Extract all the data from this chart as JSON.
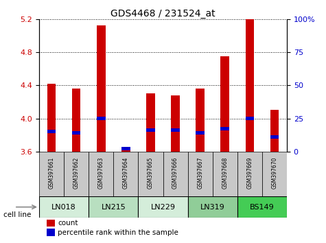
{
  "title": "GDS4468 / 231524_at",
  "samples": [
    "GSM397661",
    "GSM397662",
    "GSM397663",
    "GSM397664",
    "GSM397665",
    "GSM397666",
    "GSM397667",
    "GSM397668",
    "GSM397669",
    "GSM397670"
  ],
  "count_values": [
    4.42,
    4.36,
    5.13,
    3.62,
    4.3,
    4.28,
    4.36,
    4.75,
    5.2,
    4.1
  ],
  "percentile_values": [
    15,
    14,
    25,
    2,
    16,
    16,
    14,
    17,
    25,
    11
  ],
  "ylim_left": [
    3.6,
    5.2
  ],
  "ylim_right": [
    0,
    100
  ],
  "yticks_left": [
    3.6,
    4.0,
    4.4,
    4.8,
    5.2
  ],
  "yticks_right": [
    0,
    25,
    50,
    75,
    100
  ],
  "ytick_labels_right": [
    "0",
    "25",
    "50",
    "75",
    "100%"
  ],
  "bar_color": "#cc0000",
  "percentile_color": "#0000cc",
  "bar_bottom": 3.6,
  "cell_lines": [
    "LN018",
    "LN215",
    "LN229",
    "LN319",
    "BS149"
  ],
  "cell_line_spans": [
    [
      0,
      2
    ],
    [
      2,
      4
    ],
    [
      4,
      6
    ],
    [
      6,
      8
    ],
    [
      8,
      10
    ]
  ],
  "cell_line_colors": [
    "#d4edda",
    "#b8dfc0",
    "#d4edda",
    "#90cd98",
    "#44cc55"
  ],
  "legend_count_color": "#cc0000",
  "legend_percentile_color": "#0000cc",
  "sample_bg_color": "#c8c8c8",
  "title_fontsize": 10,
  "bar_width": 0.35
}
